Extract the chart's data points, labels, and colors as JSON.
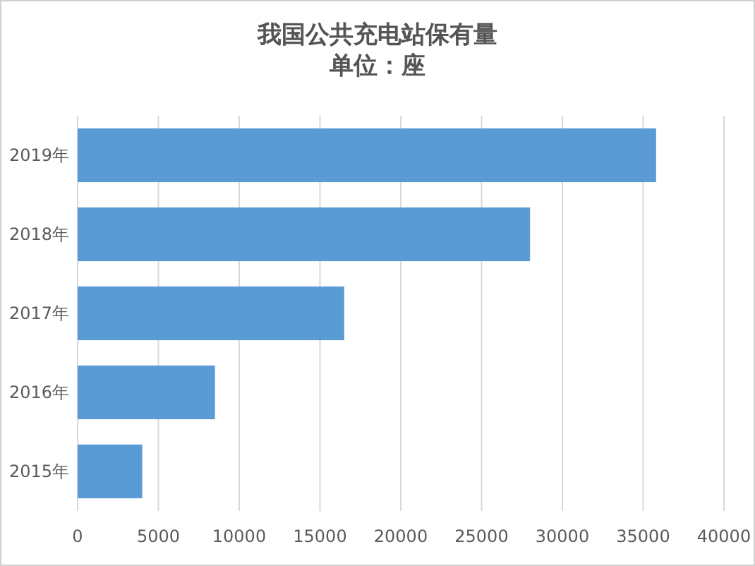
{
  "chart_data": {
    "type": "bar",
    "orientation": "horizontal",
    "title": "我国公共充电站保有量",
    "subtitle": "单位：座",
    "categories": [
      "2019年",
      "2018年",
      "2017年",
      "2016年",
      "2015年"
    ],
    "values": [
      35800,
      28000,
      16500,
      8500,
      4000
    ],
    "color": "#5b9bd5",
    "xlim": [
      0,
      40000
    ],
    "xticks": [
      0,
      5000,
      10000,
      15000,
      20000,
      25000,
      30000,
      35000,
      40000
    ],
    "grid": "x"
  }
}
